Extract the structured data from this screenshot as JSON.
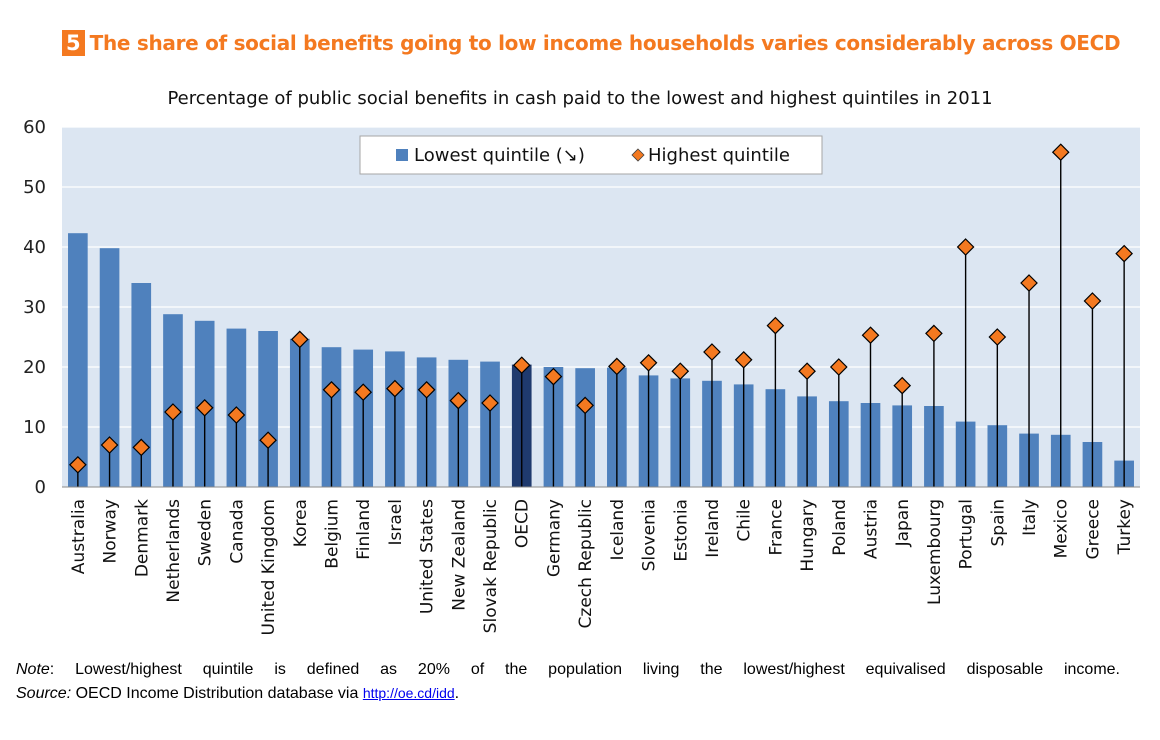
{
  "figure": {
    "number": "5",
    "heading": "The share of social benefits going to low income households varies considerably across OECD"
  },
  "chart_data": {
    "type": "bar",
    "title": "Percentage of public social benefits in cash paid to the lowest and highest quintiles in 2011",
    "xlabel": "",
    "ylabel": "",
    "ylim": [
      0,
      60
    ],
    "yticks": [
      0,
      10,
      20,
      30,
      40,
      50,
      60
    ],
    "grid": true,
    "legend_position": "top-center",
    "categories": [
      "Australia",
      "Norway",
      "Denmark",
      "Netherlands",
      "Sweden",
      "Canada",
      "United Kingdom",
      "Korea",
      "Belgium",
      "Finland",
      "Israel",
      "United States",
      "New Zealand",
      "Slovak Republic",
      "OECD",
      "Germany",
      "Czech Republic",
      "Iceland",
      "Slovenia",
      "Estonia",
      "Ireland",
      "Chile",
      "France",
      "Hungary",
      "Poland",
      "Austria",
      "Japan",
      "Luxembourg",
      "Portugal",
      "Spain",
      "Italy",
      "Mexico",
      "Greece",
      "Turkey"
    ],
    "highlight_category": "OECD",
    "series": [
      {
        "name": "Lowest quintile (↘)",
        "type": "bar",
        "values": [
          42.3,
          39.8,
          34.0,
          28.8,
          27.7,
          26.4,
          26.0,
          24.7,
          23.3,
          22.9,
          22.6,
          21.6,
          21.2,
          20.9,
          20.4,
          20.0,
          19.8,
          19.9,
          18.6,
          18.1,
          17.7,
          17.1,
          16.3,
          15.1,
          14.3,
          14.0,
          13.6,
          13.5,
          10.9,
          10.3,
          8.9,
          8.7,
          7.5,
          4.4
        ],
        "color": "#4f81bd"
      },
      {
        "name": "Highest quintile",
        "type": "marker",
        "values": [
          3.7,
          7.0,
          6.6,
          12.5,
          13.2,
          12.0,
          7.8,
          24.6,
          16.2,
          15.8,
          16.4,
          16.2,
          14.4,
          14.0,
          20.3,
          18.4,
          13.6,
          20.1,
          20.7,
          19.3,
          22.5,
          21.2,
          26.9,
          19.3,
          20.0,
          25.3,
          16.9,
          25.6,
          40.0,
          25.0,
          34.0,
          55.8,
          31.0,
          38.9
        ],
        "color": "#f47920"
      }
    ]
  },
  "note": {
    "label": "Note",
    "text": ": Lowest/highest quintile is defined as 20% of the population living the lowest/highest equivalised disposable income."
  },
  "source": {
    "label": "Source:",
    "text": " OECD Income Distribution database via ",
    "link": "http://oe.cd/idd",
    "end": "."
  },
  "colors": {
    "accent": "#f47920",
    "bar": "#4f81bd",
    "bar_highlight": "#1f3a6e",
    "plot_bg": "#dce6f2"
  }
}
